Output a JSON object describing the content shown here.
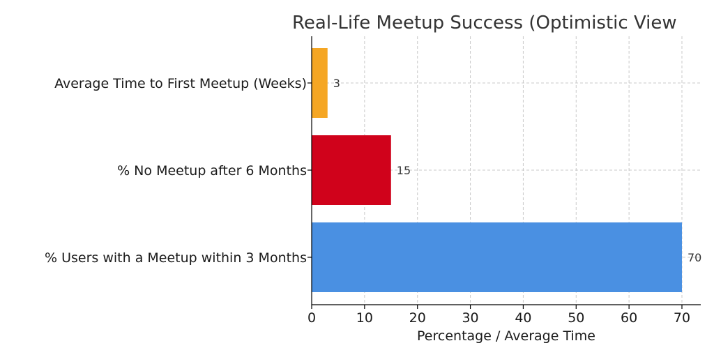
{
  "chart_data": {
    "type": "bar",
    "orientation": "horizontal",
    "title": "Real-Life Meetup Success (Optimistic View",
    "xlabel": "Percentage / Average Time",
    "ylabel": "",
    "xlim": [
      0,
      73
    ],
    "xticks": [
      0,
      10,
      20,
      30,
      40,
      50,
      60,
      70
    ],
    "grid": true,
    "categories": [
      "% Users with a Meetup within 3 Months",
      "% No Meetup after 6 Months",
      "Average Time to First Meetup (Weeks)"
    ],
    "values": [
      70,
      15,
      3
    ],
    "data_labels": [
      "70",
      "15",
      "3"
    ],
    "colors": [
      "#4a90e2",
      "#d0021b",
      "#f5a623"
    ]
  }
}
